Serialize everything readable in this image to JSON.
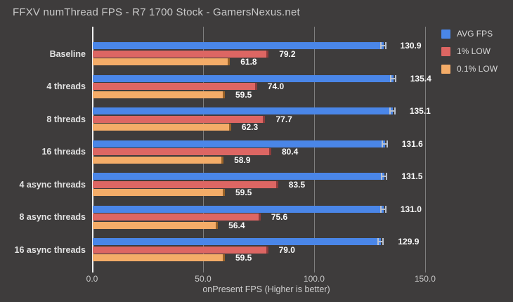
{
  "title": "FFXV numThread FPS - R7 1700 Stock - GamersNexus.net",
  "chart_data": {
    "type": "bar",
    "orientation": "horizontal",
    "title": "FFXV numThread FPS - R7 1700 Stock - GamersNexus.net",
    "xlabel": "onPresent FPS (Higher is better)",
    "categories": [
      "Baseline",
      "4 threads",
      "8 threads",
      "16 threads",
      "4 async threads",
      "8 async threads",
      "16 async threads"
    ],
    "series": [
      {
        "name": "AVG FPS",
        "color": "#4a86e8",
        "error_color": "#b9c1cf",
        "values": [
          130.9,
          135.4,
          135.1,
          131.6,
          131.5,
          131.0,
          129.9
        ]
      },
      {
        "name": "1% LOW",
        "color": "#dd6663",
        "error_color": "#8d3c3c",
        "values": [
          79.2,
          74.0,
          77.7,
          80.4,
          83.5,
          75.6,
          79.0
        ]
      },
      {
        "name": "0.1% LOW",
        "color": "#f4ac68",
        "error_color": "#996228",
        "values": [
          61.8,
          59.5,
          62.3,
          58.9,
          59.5,
          56.4,
          59.5
        ]
      }
    ],
    "xticks": [
      0,
      50,
      100,
      150
    ],
    "xtick_labels": [
      "0.0",
      "50.0",
      "100.0",
      "150.0"
    ],
    "xlim": [
      0,
      157
    ],
    "grid": true,
    "legend_position": "right-top",
    "value_labels": true,
    "background_color": "#3e3c3c",
    "grid_color": "#7e7e7e",
    "axis_line_color": "#f1f1f1"
  }
}
